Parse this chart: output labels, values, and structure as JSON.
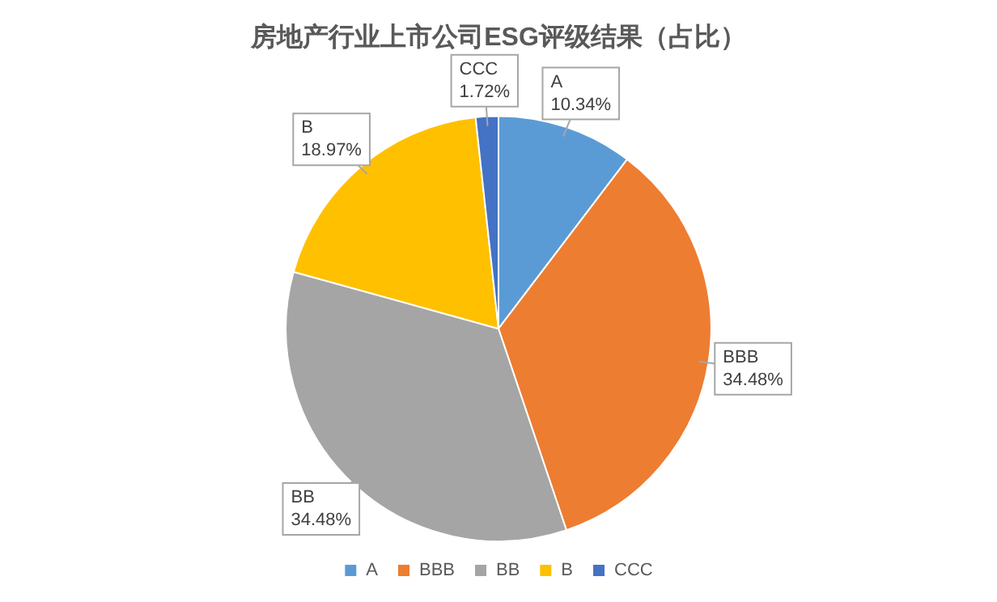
{
  "chart_data": {
    "type": "pie",
    "title": "房地产行业上市公司ESG评级结果（占比）",
    "categories": [
      "A",
      "BBB",
      "BB",
      "B",
      "CCC"
    ],
    "values": [
      10.34,
      34.48,
      34.48,
      18.97,
      1.72
    ],
    "colors": [
      "#5b9bd5",
      "#ed7d31",
      "#a5a5a5",
      "#ffc000",
      "#4472c4"
    ],
    "value_labels": [
      "10.34%",
      "34.48%",
      "34.48%",
      "18.97%",
      "1.72%"
    ],
    "legend": "bottom"
  }
}
